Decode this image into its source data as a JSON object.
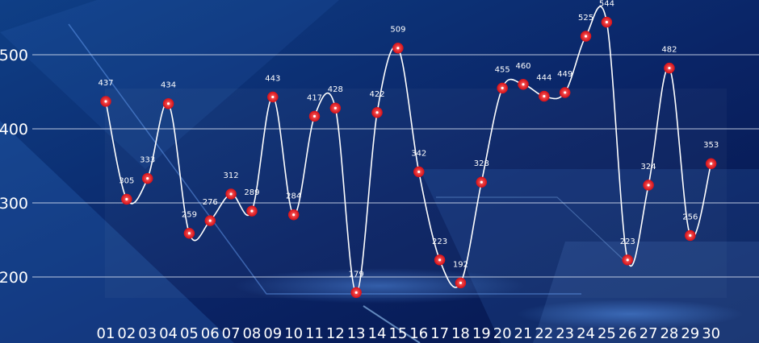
{
  "chart_data": {
    "type": "line",
    "title": "",
    "xlabel": "",
    "ylabel": "",
    "categories": [
      "01",
      "02",
      "03",
      "04",
      "05",
      "06",
      "07",
      "08",
      "09",
      "10",
      "11",
      "12",
      "13",
      "14",
      "15",
      "16",
      "17",
      "18",
      "19",
      "20",
      "21",
      "22",
      "23",
      "24",
      "25",
      "26",
      "27",
      "28",
      "29",
      "30"
    ],
    "series": [
      {
        "values": [
          437,
          305,
          333,
          434,
          259,
          276,
          312,
          289,
          443,
          284,
          417,
          428,
          179,
          422,
          509,
          342,
          223,
          192,
          328,
          455,
          460,
          444,
          449,
          525,
          544,
          223,
          324,
          482,
          256,
          353
        ],
        "labels": [
          "437",
          "305",
          "333",
          "434",
          "259",
          "276",
          "312",
          "289",
          "443",
          "284",
          "417",
          "428",
          "179",
          "422",
          "509",
          "342",
          "223",
          "192",
          "328",
          "455",
          "460",
          "444",
          "449",
          "525",
          "544",
          "223",
          "324",
          "482",
          "256",
          "353"
        ]
      }
    ],
    "y_ticks": [
      "200",
      "300",
      "400",
      "500"
    ],
    "ylim": [
      200,
      500
    ],
    "grid": true,
    "legend": "none",
    "smooth": true
  },
  "colors": {
    "background": "#0a1f55",
    "line": "#ffffff",
    "marker": "#e8141b",
    "marker_center": "#ffffff",
    "grid": "#d9e2f2",
    "text": "#ffffff"
  }
}
